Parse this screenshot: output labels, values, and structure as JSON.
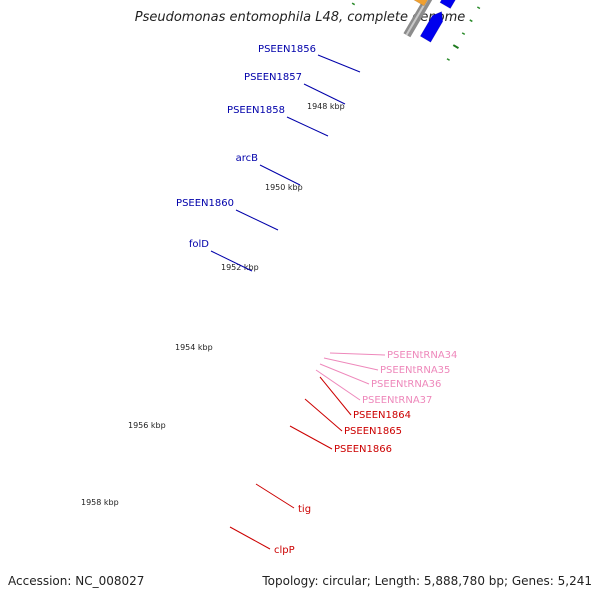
{
  "title": "Pseudomonas entomophila L48, complete genome",
  "footer": {
    "accession": "Accession: NC_008027",
    "summary": "Topology: circular; Length: 5,888,780 bp; Genes: 5,241"
  },
  "colors": {
    "backbone": "#8c8c8c",
    "tick_major": "#1e7a1e",
    "tick_minor": "#2a8a2a",
    "cds_forward": "#0000ee",
    "cds_other": "#e60000",
    "cds_steelblue": "#4a84b6",
    "cds_gray": "#6a6a6a",
    "cds_khaki": "#c2bc7a",
    "cds_lime": "#9ef03a",
    "trna": "#f39ac9",
    "cds_orange": "#f0a030",
    "label_blue": "#0000aa",
    "label_red": "#cc0000",
    "label_pink": "#ee88bb"
  },
  "scale_labels": [
    "1948 kbp",
    "1950 kbp",
    "1952 kbp",
    "1954 kbp",
    "1956 kbp",
    "1958 kbp"
  ],
  "gene_labels": [
    "PSEEN1856",
    "PSEEN1857",
    "PSEEN1858",
    "arcB",
    "PSEEN1860",
    "folD",
    "PSEENtRNA34",
    "PSEENtRNA35",
    "PSEENtRNA36",
    "PSEENtRNA37",
    "PSEEN1864",
    "PSEEN1865",
    "PSEEN1866",
    "tig",
    "clpP"
  ]
}
